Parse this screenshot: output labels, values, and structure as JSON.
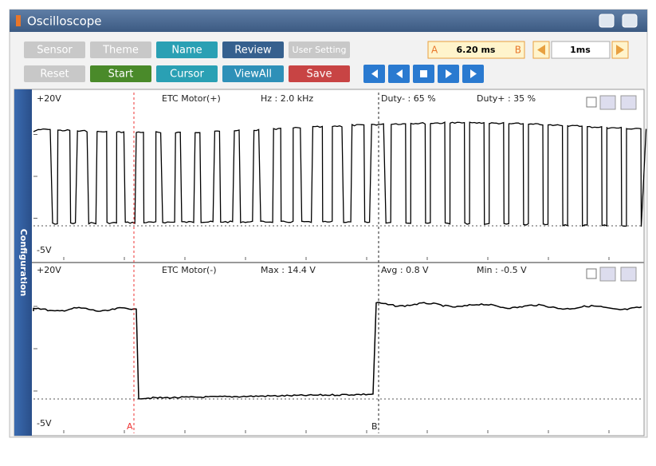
{
  "window": {
    "title": "Oscilloscope"
  },
  "toolbar": {
    "row1": [
      "Sensor",
      "Theme",
      "Name",
      "Review",
      "User Setting"
    ],
    "row2": [
      "Reset",
      "Start",
      "Cursor",
      "ViewAll",
      "Save"
    ]
  },
  "cursor_readout": {
    "a": "A",
    "time": "6.20 ms",
    "b": "B"
  },
  "timebase": "1ms",
  "side_tab": "Configuration",
  "channels": [
    {
      "top": "+20V",
      "name": "ETC Motor(+)",
      "stats": [
        "Hz : 2.0 kHz",
        "Duty- : 65 %",
        "Duty+ : 35 %"
      ],
      "bottom": "-5V"
    },
    {
      "top": "+20V",
      "name": "ETC Motor(-)",
      "stats": [
        "Max : 14.4 V",
        "Avg : 0.8 V",
        "Min : -0.5 V"
      ],
      "bottom": "-5V"
    }
  ],
  "markers": [
    "A",
    "B"
  ]
}
